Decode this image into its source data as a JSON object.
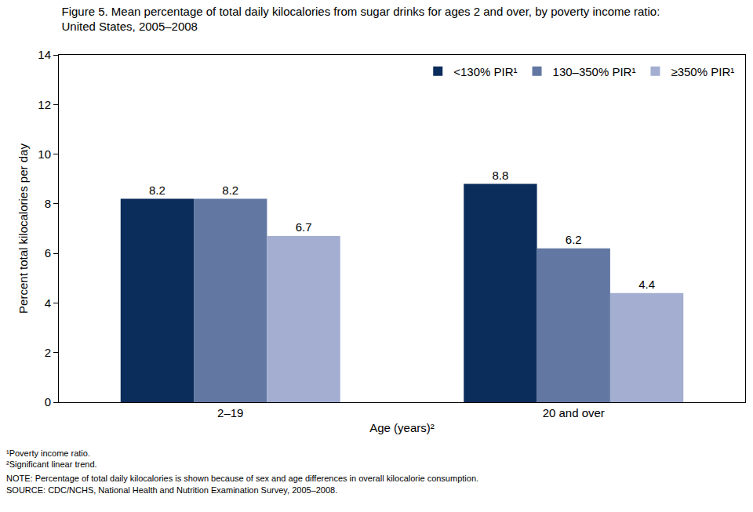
{
  "chart_data": {
    "type": "bar",
    "title": "Figure 5. Mean percentage of total daily kilocalories from sugar drinks for ages 2 and over, by poverty income ratio: United States, 2005–2008",
    "x_label": "Age (years)²",
    "y_label": "Percent total kilocalories per day",
    "categories": [
      "2–19",
      "20 and over"
    ],
    "series": [
      {
        "name": "<130% PIR¹",
        "color": "#0b2d5c",
        "values": [
          8.2,
          8.8
        ]
      },
      {
        "name": "130–350% PIR¹",
        "color": "#6278a3",
        "values": [
          8.2,
          6.2
        ]
      },
      {
        "name": "≥350% PIR¹",
        "color": "#a3aed0",
        "values": [
          6.7,
          4.4
        ]
      }
    ],
    "ylim": [
      0,
      14
    ],
    "yticks": [
      0,
      2,
      4,
      6,
      8,
      10,
      12,
      14
    ],
    "grid": false,
    "legend": "top right",
    "data_labels": true,
    "annotations": [
      "¹Poverty income ratio.",
      "²Significant linear trend.",
      "NOTE: Percentage of total daily kilocalories is shown because of sex and age differences in overall kilocalorie consumption.",
      "SOURCE: CDC/NCHS, National Health and Nutrition Examination Survey, 2005–2008."
    ]
  }
}
